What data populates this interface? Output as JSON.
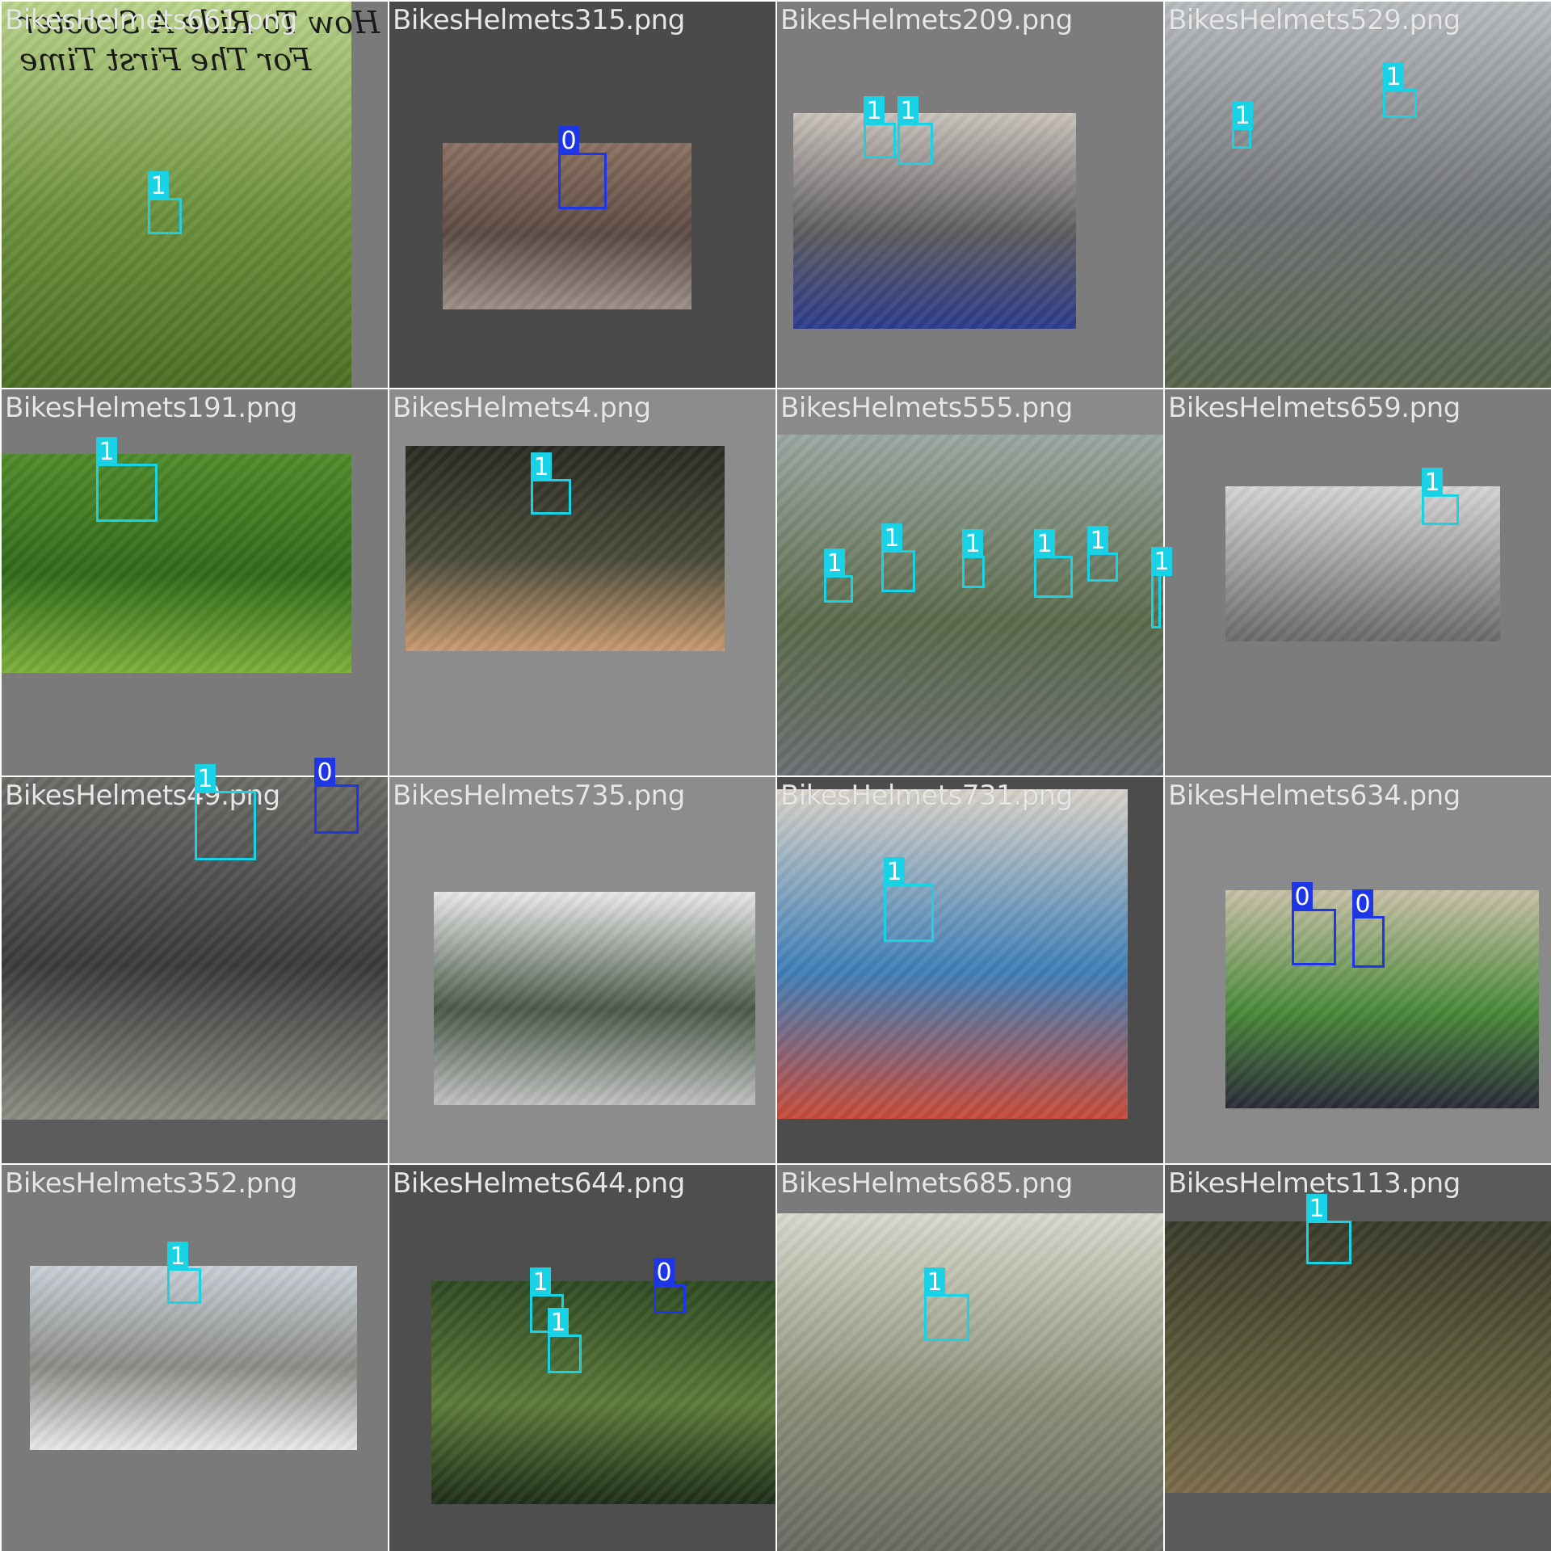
{
  "colors": {
    "class1_box": "#19d2e6",
    "class0_box": "#1f36e6",
    "filename_text": "#e6e6e6"
  },
  "tiles": [
    {
      "filename": "BikesHelmets661.png",
      "bg": "#7a7a7a",
      "photo_colors": [
        "#b9d38a",
        "#6c8f3c",
        "#4b6e22"
      ],
      "overlay_lines": [
        "How To Ride A Scooter",
        "For The First Time"
      ],
      "boxes": [
        {
          "label": "1"
        }
      ]
    },
    {
      "filename": "BikesHelmets315.png",
      "bg": "#4a4a4a",
      "photo_colors": [
        "#8a7060",
        "#5c4a44",
        "#9b8f86"
      ],
      "boxes": [
        {
          "label": "0"
        }
      ]
    },
    {
      "filename": "BikesHelmets209.png",
      "bg": "#7c7c7c",
      "photo_colors": [
        "#c9c2bc",
        "#5f5d60",
        "#2d3b8c"
      ],
      "boxes": [
        {
          "label": "1"
        },
        {
          "label": "1"
        }
      ]
    },
    {
      "filename": "BikesHelmets529.png",
      "bg": "#8a8a8a",
      "photo_colors": [
        "#b8bcbf",
        "#6f7275",
        "#56634a"
      ],
      "boxes": [
        {
          "label": "1"
        },
        {
          "label": "1"
        }
      ]
    },
    {
      "filename": "BikesHelmets191.png",
      "bg": "#7a7a7a",
      "photo_colors": [
        "#4f8a2a",
        "#2f6a1a",
        "#7cae3a"
      ],
      "boxes": [
        {
          "label": "1"
        }
      ]
    },
    {
      "filename": "BikesHelmets4.png",
      "bg": "#8c8c8c",
      "photo_colors": [
        "#2a2a22",
        "#4a4a3a",
        "#c89a70"
      ],
      "boxes": [
        {
          "label": "1"
        }
      ]
    },
    {
      "filename": "BikesHelmets555.png",
      "bg": "#8a8a8a",
      "photo_colors": [
        "#9aa7a2",
        "#5a6a4a",
        "#6a6e72"
      ],
      "boxes": [
        {
          "label": "1"
        },
        {
          "label": "1"
        },
        {
          "label": "1"
        },
        {
          "label": "1"
        },
        {
          "label": "1"
        },
        {
          "label": "1"
        }
      ]
    },
    {
      "filename": "BikesHelmets659.png",
      "bg": "#7c7c7c",
      "photo_colors": [
        "#d4d4d4",
        "#9a9a9a",
        "#6a6a6a"
      ],
      "boxes": [
        {
          "label": "1"
        }
      ]
    },
    {
      "filename": "BikesHelmets49.png",
      "bg": "#5c5c5c",
      "photo_colors": [
        "#6a6a66",
        "#3a3a3a",
        "#8a8e82"
      ],
      "boxes": [
        {
          "label": "1"
        },
        {
          "label": "0"
        }
      ]
    },
    {
      "filename": "BikesHelmets735.png",
      "bg": "#8c8c8c",
      "photo_colors": [
        "#e8e8e8",
        "#4a5a4a",
        "#bfbfbf"
      ],
      "boxes": []
    },
    {
      "filename": "BikesHelmets731.png",
      "bg": "#4c4c4c",
      "photo_colors": [
        "#d8d2c8",
        "#3f7fb8",
        "#c84a3a"
      ],
      "boxes": [
        {
          "label": "1"
        }
      ]
    },
    {
      "filename": "BikesHelmets634.png",
      "bg": "#8a8a8a",
      "photo_colors": [
        "#c8c0a8",
        "#4a8a3a",
        "#2a2a3a"
      ],
      "boxes": [
        {
          "label": "0"
        },
        {
          "label": "0"
        }
      ]
    },
    {
      "filename": "BikesHelmets352.png",
      "bg": "#7a7a7a",
      "photo_colors": [
        "#c8cfd6",
        "#8a8c86",
        "#e8e8e8"
      ],
      "boxes": [
        {
          "label": "1"
        }
      ]
    },
    {
      "filename": "BikesHelmets644.png",
      "bg": "#4e4e4e",
      "photo_colors": [
        "#2e4a22",
        "#5a7a3a",
        "#1e2e18"
      ],
      "boxes": [
        {
          "label": "1"
        },
        {
          "label": "1"
        },
        {
          "label": "0"
        }
      ]
    },
    {
      "filename": "BikesHelmets685.png",
      "bg": "#7a7a7a",
      "photo_colors": [
        "#d8d8cc",
        "#8a9078",
        "#6a6a62"
      ],
      "boxes": [
        {
          "label": "1"
        }
      ]
    },
    {
      "filename": "BikesHelmets113.png",
      "bg": "#5a5a5a",
      "photo_colors": [
        "#3a3a2a",
        "#5a5a3a",
        "#7a6a4a"
      ],
      "boxes": [
        {
          "label": "1"
        }
      ]
    }
  ]
}
